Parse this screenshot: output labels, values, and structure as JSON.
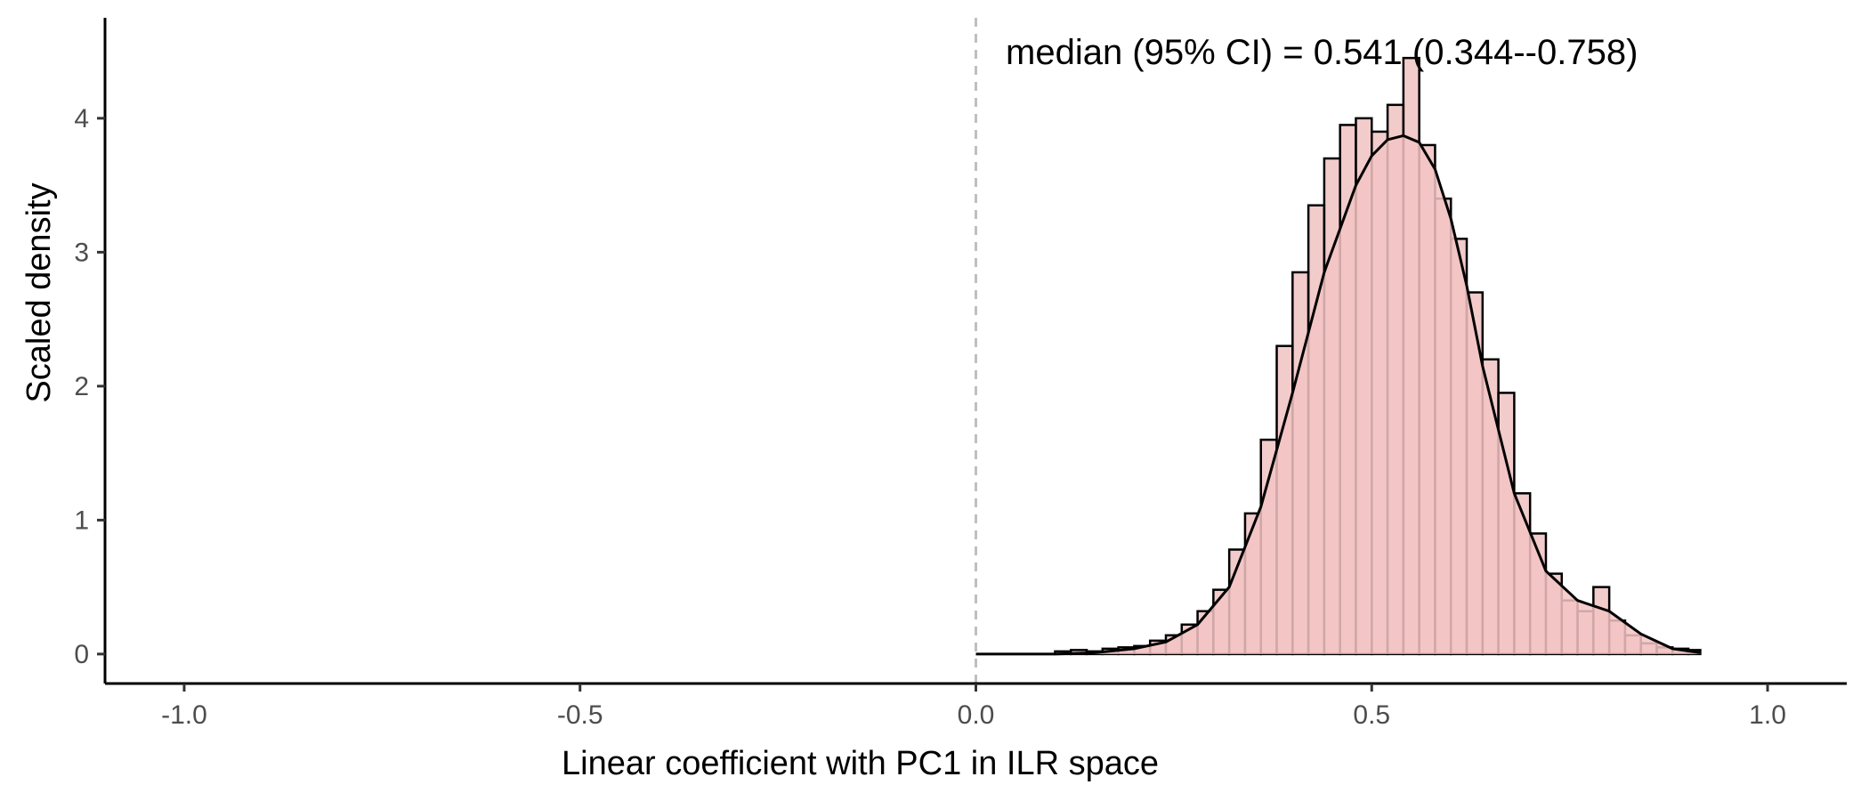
{
  "chart_data": {
    "type": "histogram",
    "xlabel": "Linear coefficient with PC1 in ILR space",
    "ylabel": "Scaled density",
    "xlim": [
      -1.1,
      1.1
    ],
    "ylim": [
      -0.22,
      4.75
    ],
    "x_ticks": [
      -1.0,
      -0.5,
      0.0,
      0.5,
      1.0
    ],
    "x_tick_labels": [
      "-1.0",
      "-0.5",
      "0.0",
      "0.5",
      "1.0"
    ],
    "y_ticks": [
      0,
      1,
      2,
      3,
      4
    ],
    "y_tick_labels": [
      "0",
      "1",
      "2",
      "3",
      "4"
    ],
    "annotation": "median (95% CI) = 0.541 (0.344--0.758)",
    "reference_line_x": 0.0,
    "grid": false,
    "colors": {
      "bar_fill": "#e8a0a0",
      "bar_outline": "#000000",
      "density_fill": "#f4c4c4",
      "density_line": "#000000",
      "reference_line": "#bfbfbf"
    },
    "histogram": {
      "bin_starts": [
        0.0,
        0.1,
        0.12,
        0.14,
        0.16,
        0.18,
        0.2,
        0.22,
        0.24,
        0.26,
        0.28,
        0.3,
        0.32,
        0.34,
        0.36,
        0.38,
        0.4,
        0.42,
        0.44,
        0.46,
        0.48,
        0.5,
        0.52,
        0.54,
        0.56,
        0.58,
        0.6,
        0.62,
        0.64,
        0.66,
        0.68,
        0.7,
        0.72,
        0.74,
        0.76,
        0.78,
        0.8,
        0.82,
        0.84,
        0.86,
        0.88,
        0.9
      ],
      "bin_ends": [
        0.1,
        0.12,
        0.14,
        0.16,
        0.18,
        0.2,
        0.22,
        0.24,
        0.26,
        0.28,
        0.3,
        0.32,
        0.34,
        0.36,
        0.38,
        0.4,
        0.42,
        0.44,
        0.46,
        0.48,
        0.5,
        0.52,
        0.54,
        0.56,
        0.58,
        0.6,
        0.62,
        0.64,
        0.66,
        0.68,
        0.7,
        0.72,
        0.74,
        0.76,
        0.78,
        0.8,
        0.82,
        0.84,
        0.86,
        0.88,
        0.9,
        0.915
      ],
      "values": [
        0.0,
        0.02,
        0.03,
        0.02,
        0.04,
        0.05,
        0.06,
        0.1,
        0.14,
        0.22,
        0.32,
        0.48,
        0.78,
        1.05,
        1.6,
        2.3,
        2.85,
        3.35,
        3.7,
        3.95,
        4.0,
        3.9,
        4.1,
        4.45,
        3.8,
        3.4,
        3.1,
        2.7,
        2.2,
        1.95,
        1.2,
        0.9,
        0.6,
        0.4,
        0.32,
        0.5,
        0.25,
        0.14,
        0.08,
        0.05,
        0.04,
        0.03
      ]
    },
    "density": {
      "x": [
        0.0,
        0.1,
        0.15,
        0.2,
        0.24,
        0.28,
        0.32,
        0.36,
        0.4,
        0.44,
        0.48,
        0.5,
        0.52,
        0.54,
        0.56,
        0.58,
        0.6,
        0.62,
        0.64,
        0.68,
        0.72,
        0.76,
        0.8,
        0.84,
        0.88,
        0.915
      ],
      "y": [
        0.0,
        0.0,
        0.01,
        0.04,
        0.09,
        0.22,
        0.5,
        1.1,
        1.95,
        2.85,
        3.5,
        3.72,
        3.84,
        3.87,
        3.82,
        3.62,
        3.25,
        2.75,
        2.15,
        1.2,
        0.62,
        0.4,
        0.32,
        0.15,
        0.04,
        0.01
      ]
    }
  }
}
